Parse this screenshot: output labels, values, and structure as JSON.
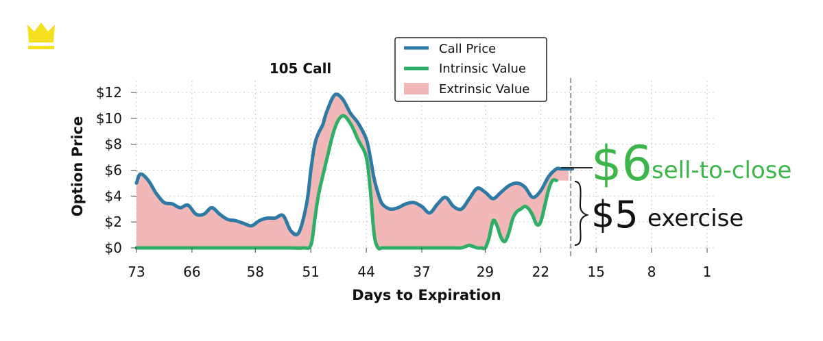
{
  "logo": {
    "icon": "crown-icon",
    "color": "#f5e020"
  },
  "chart_data": {
    "type": "line",
    "title": "105 Call",
    "xlabel": "Days to Expiration",
    "ylabel": "Option Price",
    "x_reversed": true,
    "xlim": [
      73,
      1
    ],
    "ylim": [
      0,
      12
    ],
    "xticks": [
      73,
      66,
      58,
      51,
      44,
      37,
      29,
      22,
      15,
      8,
      1
    ],
    "yticks": [
      0,
      2,
      4,
      6,
      8,
      10,
      12
    ],
    "ytick_labels": [
      "$0",
      "$2",
      "$4",
      "$6",
      "$8",
      "$10",
      "$12"
    ],
    "grid": true,
    "legend_position": "top-center",
    "colors": {
      "call": "#2e7aa6",
      "intrinsic": "#2fae65",
      "extrinsic": "#f2b8b8"
    },
    "series": [
      {
        "name": "Call Price",
        "x": [
          73,
          72.5,
          71.5,
          70.5,
          69.5,
          68.5,
          67.5,
          66.5,
          65.5,
          64.5,
          63.5,
          62.5,
          61.5,
          60.5,
          59.5,
          58.5,
          57.5,
          56.5,
          55.5,
          54.5,
          53.5,
          52.5,
          51.5,
          51,
          50.5,
          50,
          49.5,
          49,
          48,
          47,
          46,
          45,
          44,
          43.5,
          43,
          42.5,
          42,
          41,
          40,
          39,
          38,
          37,
          36,
          35,
          34,
          33,
          32,
          31,
          30,
          29,
          28,
          27,
          26,
          25,
          24,
          23,
          22,
          21,
          20,
          19.5,
          19,
          18.5,
          18
        ],
        "values": [
          5.0,
          5.7,
          5.2,
          4.2,
          3.5,
          3.4,
          3.1,
          3.3,
          2.6,
          2.6,
          3.1,
          2.6,
          2.2,
          2.1,
          1.9,
          1.7,
          2.1,
          2.3,
          2.3,
          2.5,
          1.3,
          1.2,
          3.5,
          6.0,
          8.0,
          8.9,
          9.5,
          10.5,
          11.8,
          11.5,
          10.4,
          9.6,
          8.4,
          7.0,
          5.3,
          4.2,
          3.4,
          3.0,
          3.1,
          3.4,
          3.5,
          3.2,
          2.7,
          3.4,
          3.9,
          3.2,
          3.0,
          3.8,
          4.6,
          4.3,
          3.8,
          4.3,
          4.8,
          5.0,
          4.7,
          3.9,
          4.4,
          5.5,
          6.1,
          6.1,
          6.1,
          6.1,
          6.1
        ]
      },
      {
        "name": "Intrinsic Value",
        "x": [
          73,
          72,
          70,
          68,
          66,
          64,
          62,
          60,
          58,
          56,
          54,
          52,
          51,
          50.5,
          50,
          49,
          48,
          47,
          46,
          45,
          44,
          43.5,
          43,
          42.5,
          42,
          41,
          40,
          39,
          38,
          37,
          36,
          35,
          34,
          33,
          32,
          31.5,
          31,
          30.5,
          30,
          29.5,
          29,
          28.5,
          28,
          27.5,
          27,
          26.5,
          26,
          25.5,
          25,
          24.5,
          24,
          23.5,
          23,
          22.5,
          22,
          21.5,
          21,
          20.5,
          20
        ],
        "values": [
          0,
          0,
          0,
          0,
          0,
          0,
          0,
          0,
          0,
          0,
          0,
          0,
          0.2,
          2.2,
          4.2,
          6.8,
          9.2,
          10.2,
          9.6,
          8.3,
          7.0,
          4.5,
          1.0,
          0,
          0,
          0,
          0,
          0,
          0,
          0,
          0,
          0,
          0,
          0,
          0,
          0.1,
          0.2,
          0.1,
          0,
          0,
          0,
          0.8,
          2.1,
          1.7,
          0.8,
          0.5,
          1.2,
          2.3,
          2.8,
          3.0,
          3.2,
          3.0,
          2.5,
          1.8,
          2.0,
          3.2,
          4.5,
          5.2,
          5.2
        ]
      },
      {
        "name": "Extrinsic Value",
        "kind": "fill-between"
      }
    ],
    "vline_x": 18.2,
    "annotations": {
      "sell_value": "$6",
      "sell_label": "sell-to-close",
      "exercise_value": "$5",
      "exercise_label": "exercise"
    }
  }
}
